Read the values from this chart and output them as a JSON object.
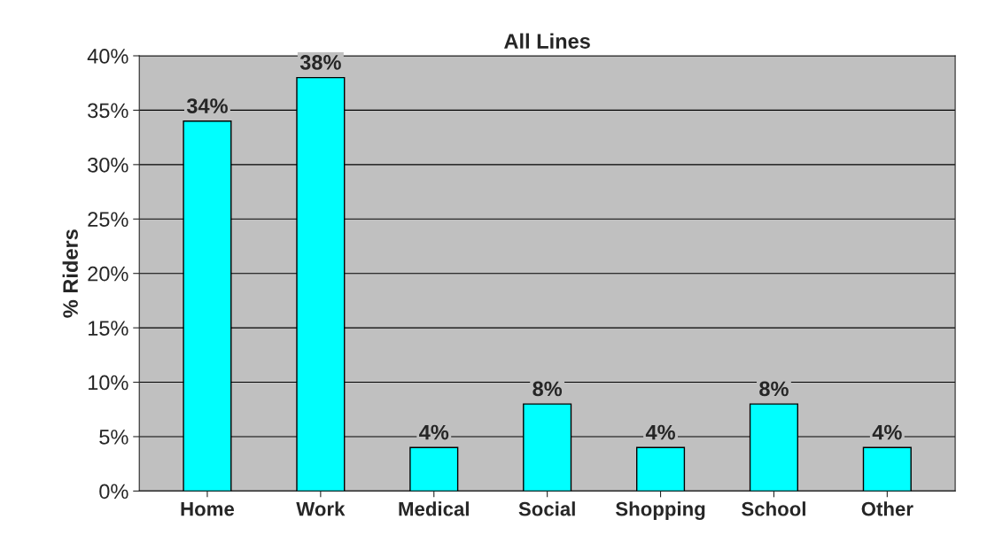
{
  "chart_data": {
    "type": "bar",
    "title": "All Lines",
    "ylabel": "% Riders",
    "categories": [
      "Home",
      "Work",
      "Medical",
      "Social",
      "Shopping",
      "School",
      "Other"
    ],
    "values": [
      34,
      38,
      4,
      8,
      4,
      8,
      4
    ],
    "value_labels": [
      "34%",
      "38%",
      "4%",
      "8%",
      "4%",
      "8%",
      "4%"
    ],
    "color": "#00ffff",
    "ylim": [
      0,
      40
    ],
    "yticks": [
      {
        "value": 0,
        "label": "0%"
      },
      {
        "value": 5,
        "label": "5%"
      },
      {
        "value": 10,
        "label": "10%"
      },
      {
        "value": 15,
        "label": "15%"
      },
      {
        "value": 20,
        "label": "20%"
      },
      {
        "value": 25,
        "label": "25%"
      },
      {
        "value": 30,
        "label": "30%"
      },
      {
        "value": 35,
        "label": "35%"
      },
      {
        "value": 40,
        "label": "40%"
      }
    ],
    "grid": "y",
    "legend": false
  }
}
